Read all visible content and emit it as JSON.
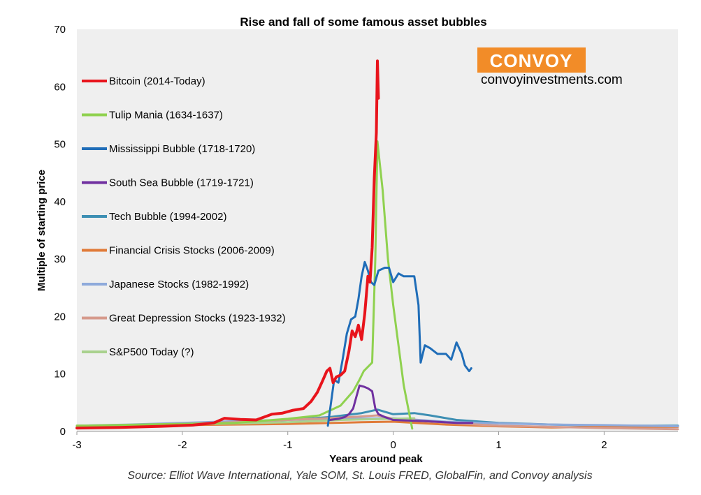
{
  "chart_data": {
    "type": "line",
    "title": "Rise and fall of some famous asset bubbles",
    "xlabel": "Years around peak",
    "ylabel": "Multiple of starting price",
    "xlim": [
      -3,
      2.7
    ],
    "ylim": [
      0,
      70
    ],
    "x_ticks": [
      "-3",
      "-2",
      "-1",
      "0",
      "1",
      "2"
    ],
    "y_ticks": [
      "0",
      "10",
      "20",
      "30",
      "40",
      "50",
      "60",
      "70"
    ],
    "grid": false,
    "legend_position": "left",
    "source": "Source: Elliot Wave International, Yale SOM, St. Louis FRED, GlobalFin, and Convoy analysis",
    "series": [
      {
        "name": "Bitcoin (2014-Today)",
        "color": "#e8141c",
        "width": 4,
        "points": [
          [
            -3,
            0.6
          ],
          [
            -2.6,
            0.7
          ],
          [
            -2.2,
            0.9
          ],
          [
            -1.9,
            1.1
          ],
          [
            -1.7,
            1.5
          ],
          [
            -1.6,
            2.3
          ],
          [
            -1.45,
            2.1
          ],
          [
            -1.3,
            2.0
          ],
          [
            -1.15,
            3.0
          ],
          [
            -1.05,
            3.2
          ],
          [
            -0.95,
            3.7
          ],
          [
            -0.85,
            4.0
          ],
          [
            -0.78,
            5.2
          ],
          [
            -0.72,
            6.8
          ],
          [
            -0.67,
            8.8
          ],
          [
            -0.63,
            10.5
          ],
          [
            -0.6,
            11.0
          ],
          [
            -0.57,
            8.5
          ],
          [
            -0.54,
            9.5
          ],
          [
            -0.5,
            9.8
          ],
          [
            -0.46,
            10.5
          ],
          [
            -0.42,
            14.0
          ],
          [
            -0.39,
            17.5
          ],
          [
            -0.36,
            16.5
          ],
          [
            -0.33,
            18.5
          ],
          [
            -0.3,
            16.0
          ],
          [
            -0.27,
            20.5
          ],
          [
            -0.24,
            27.0
          ],
          [
            -0.22,
            26.0
          ],
          [
            -0.2,
            32.0
          ],
          [
            -0.18,
            44.0
          ],
          [
            -0.16,
            52.0
          ],
          [
            -0.15,
            64.5
          ],
          [
            -0.14,
            58.0
          ]
        ]
      },
      {
        "name": "Tulip Mania (1634-1637)",
        "color": "#8fd14f",
        "width": 3,
        "points": [
          [
            -3,
            1.0
          ],
          [
            -1.5,
            1.5
          ],
          [
            -1.0,
            2.2
          ],
          [
            -0.7,
            2.8
          ],
          [
            -0.5,
            4.5
          ],
          [
            -0.38,
            7.0
          ],
          [
            -0.32,
            9.0
          ],
          [
            -0.28,
            10.5
          ],
          [
            -0.2,
            12.0
          ],
          [
            -0.17,
            30.0
          ],
          [
            -0.15,
            50.5
          ],
          [
            -0.1,
            42.0
          ],
          [
            -0.05,
            30.0
          ],
          [
            0.0,
            22.0
          ],
          [
            0.1,
            8.0
          ],
          [
            0.18,
            0.5
          ]
        ]
      },
      {
        "name": "Mississippi Bubble (1718-1720)",
        "color": "#1f6db8",
        "width": 3,
        "points": [
          [
            -0.62,
            1.0
          ],
          [
            -0.59,
            5.0
          ],
          [
            -0.56,
            9.0
          ],
          [
            -0.52,
            8.5
          ],
          [
            -0.48,
            12.5
          ],
          [
            -0.44,
            17.0
          ],
          [
            -0.4,
            19.5
          ],
          [
            -0.36,
            20.0
          ],
          [
            -0.33,
            23.0
          ],
          [
            -0.3,
            27.0
          ],
          [
            -0.27,
            29.5
          ],
          [
            -0.24,
            28.0
          ],
          [
            -0.21,
            26.0
          ],
          [
            -0.18,
            25.5
          ],
          [
            -0.14,
            28.0
          ],
          [
            -0.08,
            28.5
          ],
          [
            -0.04,
            28.5
          ],
          [
            0.0,
            26.0
          ],
          [
            0.05,
            27.5
          ],
          [
            0.1,
            27.0
          ],
          [
            0.2,
            27.0
          ],
          [
            0.24,
            22.0
          ],
          [
            0.26,
            12.0
          ],
          [
            0.3,
            15.0
          ],
          [
            0.35,
            14.5
          ],
          [
            0.42,
            13.5
          ],
          [
            0.5,
            13.5
          ],
          [
            0.55,
            12.5
          ],
          [
            0.6,
            15.5
          ],
          [
            0.65,
            13.5
          ],
          [
            0.68,
            11.5
          ],
          [
            0.72,
            10.5
          ],
          [
            0.74,
            11.0
          ]
        ]
      },
      {
        "name": "South Sea Bubble (1719-1721)",
        "color": "#7030a0",
        "width": 3,
        "points": [
          [
            -0.6,
            2.0
          ],
          [
            -0.52,
            2.2
          ],
          [
            -0.46,
            2.5
          ],
          [
            -0.42,
            3.0
          ],
          [
            -0.38,
            4.0
          ],
          [
            -0.35,
            6.0
          ],
          [
            -0.32,
            8.0
          ],
          [
            -0.28,
            7.8
          ],
          [
            -0.24,
            7.5
          ],
          [
            -0.2,
            7.0
          ],
          [
            -0.17,
            4.0
          ],
          [
            -0.14,
            3.0
          ],
          [
            -0.08,
            2.5
          ],
          [
            0.0,
            2.0
          ],
          [
            0.3,
            1.8
          ],
          [
            0.6,
            1.5
          ],
          [
            0.75,
            1.5
          ]
        ]
      },
      {
        "name": "Tech Bubble (1994-2002)",
        "color": "#3d8fb3",
        "width": 3,
        "points": [
          [
            -3,
            0.8
          ],
          [
            -2.5,
            1.0
          ],
          [
            -2.0,
            1.2
          ],
          [
            -1.5,
            1.5
          ],
          [
            -1.0,
            2.0
          ],
          [
            -0.6,
            2.5
          ],
          [
            -0.3,
            3.2
          ],
          [
            -0.15,
            3.8
          ],
          [
            0.0,
            3.0
          ],
          [
            0.2,
            3.2
          ],
          [
            0.35,
            2.8
          ],
          [
            0.6,
            2.0
          ],
          [
            1.0,
            1.5
          ],
          [
            1.5,
            1.2
          ],
          [
            2.0,
            1.0
          ],
          [
            2.7,
            1.0
          ]
        ]
      },
      {
        "name": "Financial Crisis Stocks (2006-2009)",
        "color": "#e07b39",
        "width": 3,
        "points": [
          [
            -3,
            1.0
          ],
          [
            -2.0,
            1.1
          ],
          [
            -1.0,
            1.3
          ],
          [
            -0.3,
            1.6
          ],
          [
            0.0,
            1.7
          ],
          [
            0.5,
            1.2
          ],
          [
            1.0,
            0.9
          ],
          [
            1.5,
            0.7
          ],
          [
            2.0,
            0.8
          ],
          [
            2.7,
            0.8
          ]
        ]
      },
      {
        "name": "Japanese Stocks (1982-1992)",
        "color": "#8eaadb",
        "width": 3,
        "points": [
          [
            -3,
            1.0
          ],
          [
            -2.5,
            1.2
          ],
          [
            -2.0,
            1.5
          ],
          [
            -1.5,
            1.8
          ],
          [
            -1.0,
            2.0
          ],
          [
            -0.5,
            2.2
          ],
          [
            0.0,
            2.3
          ],
          [
            0.5,
            1.7
          ],
          [
            1.0,
            1.4
          ],
          [
            1.5,
            1.2
          ],
          [
            2.0,
            1.1
          ],
          [
            2.7,
            0.9
          ]
        ]
      },
      {
        "name": "Great Depression Stocks (1923-1932)",
        "color": "#d69a8c",
        "width": 3,
        "points": [
          [
            -3,
            1.0
          ],
          [
            -2.5,
            1.1
          ],
          [
            -2.0,
            1.3
          ],
          [
            -1.5,
            1.6
          ],
          [
            -1.0,
            2.0
          ],
          [
            -0.5,
            2.4
          ],
          [
            -0.15,
            2.8
          ],
          [
            0.0,
            2.2
          ],
          [
            0.3,
            1.8
          ],
          [
            0.6,
            1.4
          ],
          [
            1.0,
            1.0
          ],
          [
            1.5,
            0.8
          ],
          [
            2.0,
            0.6
          ],
          [
            2.7,
            0.4
          ]
        ]
      },
      {
        "name": "S&P500 Today (?)",
        "color": "#a9d18e",
        "width": 3,
        "points": [
          [
            -3,
            1.0
          ],
          [
            -2.0,
            1.2
          ],
          [
            -1.0,
            1.6
          ],
          [
            -0.5,
            2.0
          ],
          [
            0.0,
            2.2
          ],
          [
            0.2,
            2.3
          ]
        ]
      }
    ]
  },
  "brand": {
    "name": "CONVOY",
    "url": "convoyinvestments.com",
    "color": "#f28c28"
  }
}
